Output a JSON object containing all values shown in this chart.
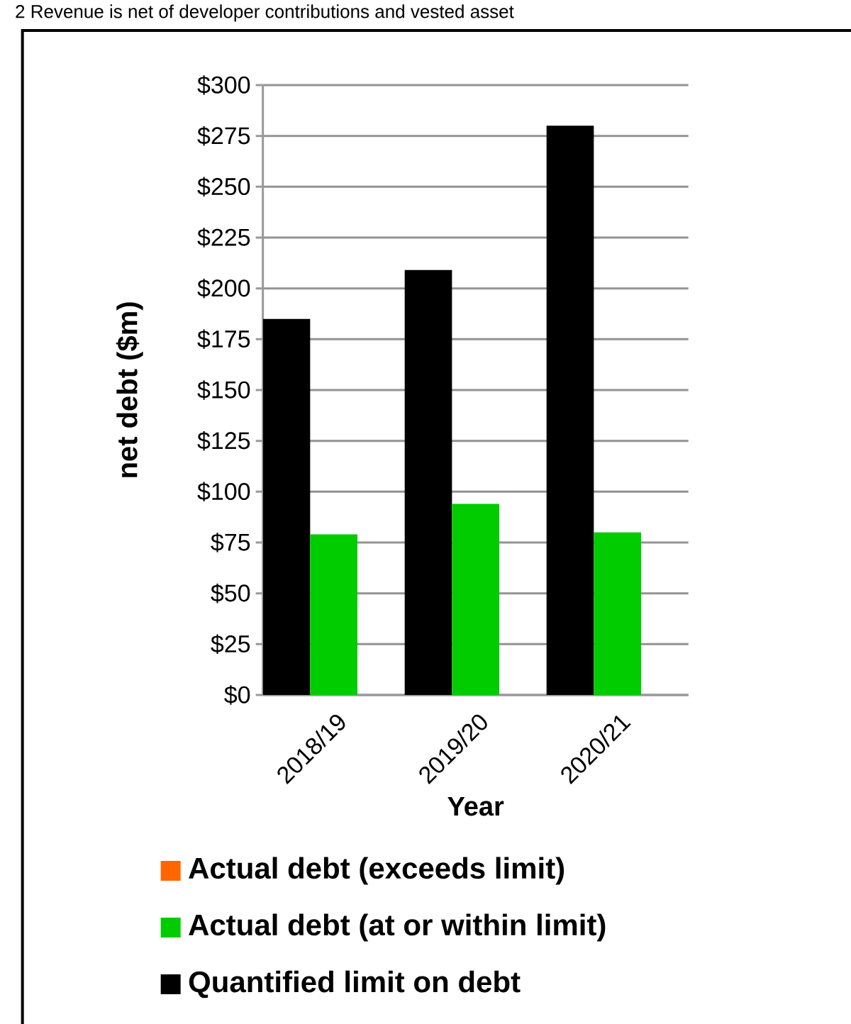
{
  "chart_data": {
    "type": "bar",
    "ylabel": "net debt ($m)",
    "xlabel": "Year",
    "annotations": [
      "2 Revenue is net of developer contributions and vested asset"
    ],
    "categories": [
      "2018/19",
      "2019/20",
      "2020/21"
    ],
    "series": [
      {
        "name": "Quantified limit on debt",
        "color": "#000000",
        "values": [
          185,
          209,
          280
        ]
      },
      {
        "name": "Actual debt (at or within limit)",
        "color": "#00cc00",
        "values": [
          79,
          94,
          80
        ]
      },
      {
        "name": "Actual debt (exceeds limit)",
        "color": "#ff6600",
        "values": [
          null,
          null,
          null
        ]
      }
    ],
    "ylim": [
      0,
      300
    ],
    "yticks": [
      {
        "value": 0,
        "label": "$0"
      },
      {
        "value": 25,
        "label": "$25"
      },
      {
        "value": 50,
        "label": "$50"
      },
      {
        "value": 75,
        "label": "$75"
      },
      {
        "value": 100,
        "label": "$100"
      },
      {
        "value": 125,
        "label": "$125"
      },
      {
        "value": 150,
        "label": "$150"
      },
      {
        "value": 175,
        "label": "$175"
      },
      {
        "value": 200,
        "label": "$200"
      },
      {
        "value": 225,
        "label": "$225"
      },
      {
        "value": 250,
        "label": "$250"
      },
      {
        "value": 275,
        "label": "$275"
      },
      {
        "value": 300,
        "label": "$300"
      }
    ],
    "grid": "y",
    "legend": "bottom"
  }
}
